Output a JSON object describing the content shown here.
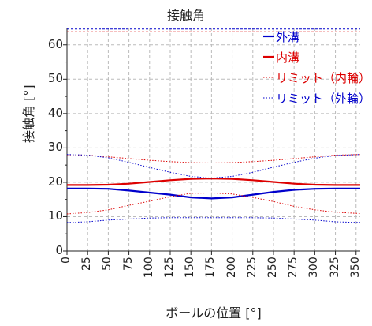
{
  "chart_data": {
    "type": "line",
    "title": "接触角",
    "xlabel": "ボールの位置 [°]",
    "ylabel": "接触角 [°]",
    "xlim": [
      0,
      355
    ],
    "ylim": [
      0,
      65
    ],
    "xticks": [
      "0",
      "25",
      "50",
      "75",
      "100",
      "125",
      "150",
      "175",
      "200",
      "225",
      "250",
      "275",
      "300",
      "325",
      "350"
    ],
    "yticks": [
      "0",
      "10",
      "20",
      "30",
      "40",
      "50",
      "60"
    ],
    "grid": true,
    "legend_position": "top-right",
    "x": [
      0,
      25,
      50,
      75,
      100,
      125,
      150,
      175,
      200,
      225,
      250,
      275,
      300,
      325,
      355
    ],
    "series": [
      {
        "name": "外溝",
        "color": "#0000cc",
        "style": "solid",
        "values": [
          18.2,
          18.2,
          18.1,
          17.6,
          17.0,
          16.4,
          15.6,
          15.3,
          15.6,
          16.4,
          17.2,
          17.8,
          18.1,
          18.2,
          18.2
        ]
      },
      {
        "name": "内溝",
        "color": "#dd0000",
        "style": "solid",
        "values": [
          19.2,
          19.2,
          19.3,
          19.6,
          20.1,
          20.6,
          21.0,
          21.1,
          21.0,
          20.6,
          20.1,
          19.6,
          19.3,
          19.2,
          19.2
        ]
      },
      {
        "name": "リミット（内輪）",
        "color": "#dd0000",
        "style": "dotted",
        "values": [
          10.8,
          11.2,
          12.0,
          13.3,
          14.5,
          15.8,
          16.8,
          16.9,
          16.6,
          15.6,
          14.4,
          13.0,
          12.0,
          11.3,
          10.9
        ]
      },
      {
        "name": "リミット（内輪）",
        "color": "#dd0000",
        "style": "dotted",
        "legend": false,
        "values": [
          28.0,
          27.9,
          27.4,
          26.9,
          26.4,
          26.0,
          25.7,
          25.6,
          25.7,
          26.0,
          26.4,
          26.9,
          27.4,
          27.9,
          28.1
        ]
      },
      {
        "name": "リミット（内輪）",
        "color": "#dd0000",
        "style": "dashed",
        "legend": false,
        "values": [
          63.8,
          63.8,
          63.8,
          63.8,
          63.8,
          63.8,
          63.8,
          63.8,
          63.8,
          63.8,
          63.8,
          63.8,
          63.8,
          63.8,
          63.8
        ]
      },
      {
        "name": "リミット（外輪）",
        "color": "#0000cc",
        "style": "dotted",
        "values": [
          8.3,
          8.5,
          9.0,
          9.3,
          9.6,
          9.7,
          9.7,
          9.7,
          9.7,
          9.7,
          9.6,
          9.3,
          9.0,
          8.5,
          8.3
        ]
      },
      {
        "name": "リミット（外輪）",
        "color": "#0000cc",
        "style": "dotted",
        "legend": false,
        "values": [
          28.1,
          27.9,
          27.1,
          25.8,
          24.3,
          22.9,
          21.7,
          21.2,
          21.7,
          22.9,
          24.4,
          25.8,
          27.0,
          27.8,
          28.1
        ]
      },
      {
        "name": "リミット（外輪）",
        "color": "#0000cc",
        "style": "dashed",
        "legend": false,
        "values": [
          64.6,
          64.6,
          64.6,
          64.6,
          64.6,
          64.6,
          64.6,
          64.6,
          64.6,
          64.6,
          64.6,
          64.6,
          64.6,
          64.6,
          64.6
        ]
      }
    ]
  }
}
